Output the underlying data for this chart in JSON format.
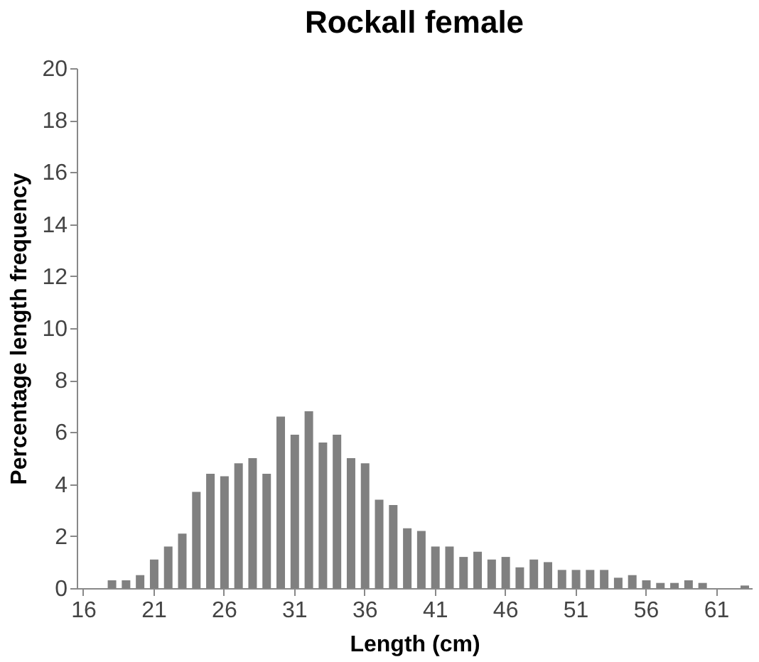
{
  "chart_data": {
    "type": "bar",
    "title": "Rockall female",
    "xlabel": "Length (cm)",
    "ylabel": "Percentage length frequency",
    "categories": [
      "16",
      null,
      null,
      null,
      null,
      "21",
      null,
      null,
      null,
      null,
      "26",
      null,
      null,
      null,
      null,
      "31",
      null,
      null,
      null,
      null,
      "36",
      null,
      null,
      null,
      null,
      "41",
      null,
      null,
      null,
      null,
      "46",
      null,
      null,
      null,
      null,
      "51",
      null,
      null,
      null,
      null,
      "56",
      null,
      null,
      null,
      null,
      "61",
      null,
      null
    ],
    "values": [
      0,
      0,
      0.3,
      0.3,
      0.5,
      1.1,
      1.6,
      2.1,
      3.7,
      4.4,
      4.3,
      4.8,
      5.0,
      4.4,
      6.6,
      5.9,
      6.8,
      5.6,
      5.9,
      5.0,
      4.8,
      3.4,
      3.2,
      2.3,
      2.2,
      1.6,
      1.6,
      1.2,
      1.4,
      1.1,
      1.2,
      0.8,
      1.1,
      1.0,
      0.7,
      0.7,
      0.7,
      0.7,
      0.4,
      0.5,
      0.3,
      0.2,
      0.2,
      0.3,
      0.2,
      0,
      0,
      0.1
    ],
    "color": "#808080",
    "ylim": [
      0,
      20
    ],
    "yticks": [
      0,
      2,
      4,
      6,
      8,
      10,
      12,
      14,
      16,
      18,
      20
    ],
    "grid": false
  }
}
